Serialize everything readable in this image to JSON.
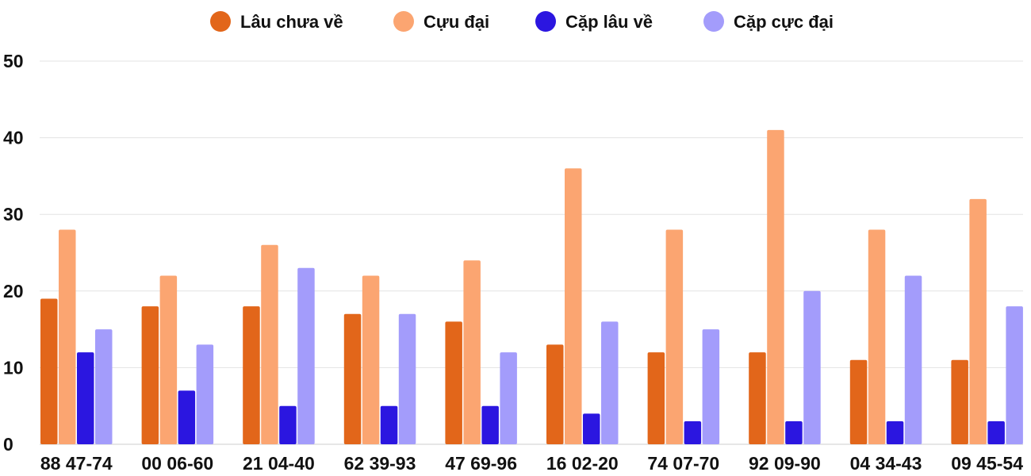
{
  "chart_data": {
    "type": "bar",
    "title": "",
    "xlabel": "",
    "ylabel": "",
    "ylim": [
      0,
      50
    ],
    "yticks": [
      0,
      10,
      20,
      30,
      40,
      50
    ],
    "grid": true,
    "legend_position": "top-center",
    "categories": [
      "88 47-74",
      "00 06-60",
      "21 04-40",
      "62 39-93",
      "47 69-96",
      "16 02-20",
      "74 07-70",
      "92 09-90",
      "04 34-43",
      "09 45-54"
    ],
    "series": [
      {
        "name": "Lâu chưa về",
        "color": "#e2661a",
        "values": [
          19,
          18,
          18,
          17,
          16,
          13,
          12,
          12,
          11,
          11
        ]
      },
      {
        "name": "Cựu đại",
        "color": "#fba571",
        "values": [
          28,
          22,
          26,
          22,
          24,
          36,
          28,
          41,
          28,
          32
        ]
      },
      {
        "name": "Cặp lâu về",
        "color": "#2b16e0",
        "values": [
          12,
          7,
          5,
          5,
          5,
          4,
          3,
          3,
          3,
          3
        ]
      },
      {
        "name": "Cặp cực đại",
        "color": "#a39cfb",
        "values": [
          15,
          13,
          23,
          17,
          12,
          16,
          15,
          20,
          22,
          18
        ]
      }
    ]
  }
}
